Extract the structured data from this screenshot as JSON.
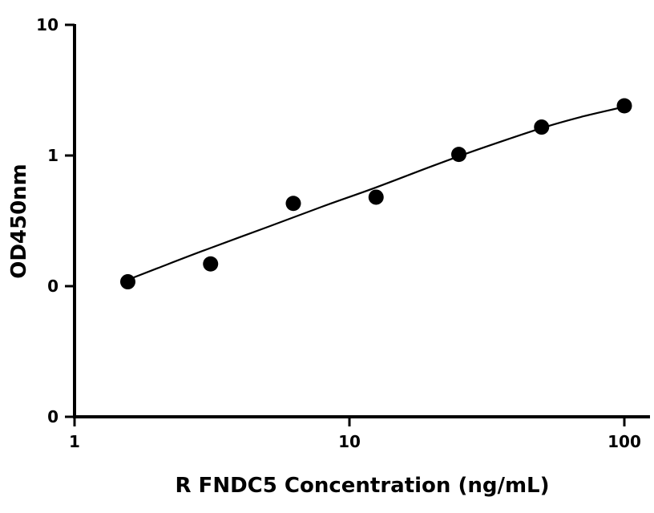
{
  "chart_data": {
    "type": "scatter",
    "title": "",
    "xlabel": "R FNDC5 Concentration (ng/mL)",
    "ylabel": "OD450nm",
    "x_scale": "log",
    "y_scale": "log",
    "xlim": [
      1,
      120
    ],
    "ylim": [
      0.01,
      10
    ],
    "x_ticks": [
      {
        "value": 1,
        "label": "1"
      },
      {
        "value": 10,
        "label": "10"
      },
      {
        "value": 100,
        "label": "100"
      }
    ],
    "y_ticks": [
      {
        "value": 0.01,
        "label": "0"
      },
      {
        "value": 0.1,
        "label": "0"
      },
      {
        "value": 1,
        "label": "1"
      },
      {
        "value": 10,
        "label": "10"
      }
    ],
    "grid": false,
    "series": [
      {
        "x": [
          1.5625,
          3.125,
          6.25,
          12.5,
          25,
          50,
          100
        ],
        "y": [
          0.108,
          0.148,
          0.43,
          0.48,
          1.02,
          1.65,
          2.4
        ]
      }
    ],
    "fit_curve": {
      "x": [
        1.5625,
        2,
        3,
        5,
        8,
        12.5,
        20,
        30,
        50,
        70,
        100
      ],
      "y": [
        0.112,
        0.137,
        0.19,
        0.282,
        0.408,
        0.57,
        0.83,
        1.13,
        1.62,
        1.98,
        2.36
      ]
    },
    "colors": {
      "axis": "#000000",
      "marker": "#000000",
      "curve": "#000000"
    }
  }
}
